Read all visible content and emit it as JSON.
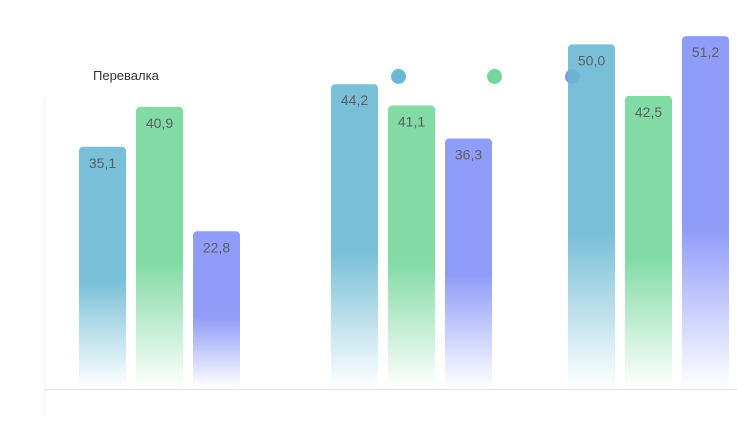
{
  "chart_data": {
    "type": "bar",
    "title": "Перевалка",
    "xlabel": "",
    "ylabel": "",
    "categories": [
      "",
      "",
      ""
    ],
    "series": [
      {
        "values": [
          35.1,
          44.2,
          50.0
        ],
        "labels": [
          "35,1",
          "44,2",
          "50,0"
        ],
        "color": "#6ab8d3"
      },
      {
        "values": [
          40.9,
          41.1,
          42.5
        ],
        "labels": [
          "40,9",
          "41,1",
          "42,5"
        ],
        "color": "#74d69a"
      },
      {
        "values": [
          22.8,
          36.3,
          51.2
        ],
        "labels": [
          "22,8",
          "36,3",
          "51,2"
        ],
        "color": "#8492f7"
      }
    ],
    "ylim": [
      0,
      55
    ],
    "grid": false,
    "legend": "top"
  }
}
